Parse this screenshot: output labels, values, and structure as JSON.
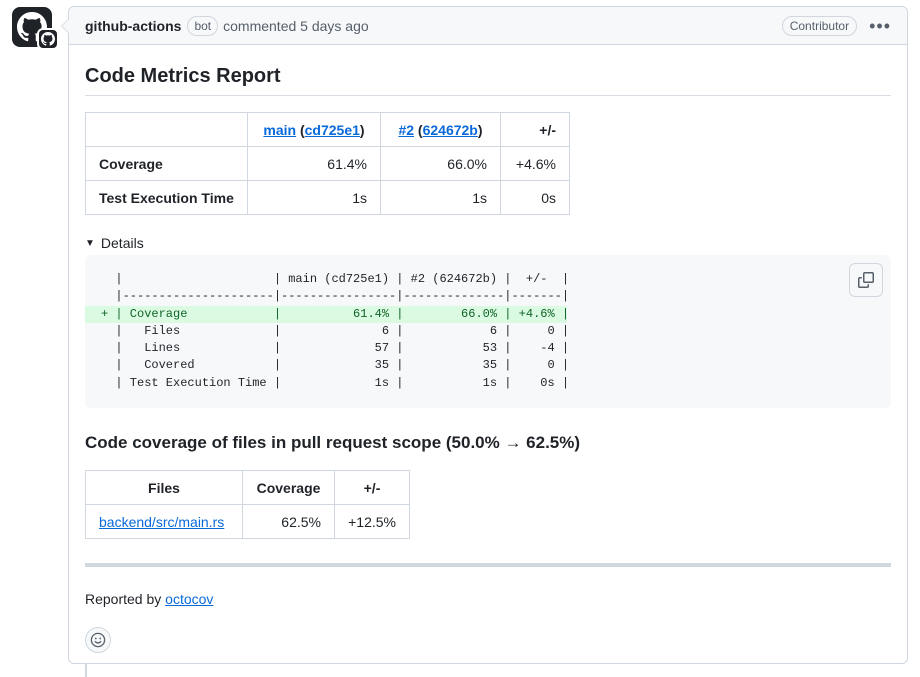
{
  "comment": {
    "author": "github-actions",
    "bot_badge": "bot",
    "meta": "commented 5 days ago",
    "role_badge": "Contributor",
    "more_label": "•••"
  },
  "report": {
    "title": "Code Metrics Report",
    "metrics_table": {
      "header_col1": "",
      "header_main_link": "main",
      "header_main_open": "(",
      "header_main_commit": "cd725e1",
      "header_main_close": ")",
      "header_pr_link": "#2",
      "header_pr_open": "(",
      "header_pr_commit": "624672b",
      "header_pr_close": ")",
      "header_diff": "+/-",
      "rows": [
        {
          "label": "Coverage",
          "main": "61.4%",
          "pr": "66.0%",
          "diff": "+4.6%"
        },
        {
          "label": "Test Execution Time",
          "main": "1s",
          "pr": "1s",
          "diff": "0s"
        }
      ]
    },
    "details_label": "Details",
    "code_lines": [
      "  |                     | main (cd725e1) | #2 (624672b) |  +/-  |",
      "  |---------------------|----------------|--------------|-------|",
      "+ | Coverage            |          61.4% |        66.0% | +4.6% |",
      "  |   Files             |              6 |            6 |     0 |",
      "  |   Lines             |             57 |           53 |    -4 |",
      "  |   Covered           |             35 |           35 |     0 |",
      "  | Test Execution Time |             1s |           1s |    0s |"
    ],
    "scope_title": "Code coverage of files in pull request scope (50.0% → 62.5%)",
    "files_table": {
      "header_files": "Files",
      "header_coverage": "Coverage",
      "header_diff": "+/-",
      "rows": [
        {
          "file": "backend/src/main.rs",
          "coverage": "62.5%",
          "diff": "+12.5%"
        }
      ]
    },
    "reported_by_prefix": "Reported by ",
    "reported_by_link": "octocov"
  },
  "icons": {
    "avatar": "github-mark-icon",
    "copy": "copy-icon",
    "reaction": "smiley-icon"
  },
  "colors": {
    "link": "#0969da",
    "added_bg": "#dafbe1",
    "added_fg": "#116329",
    "border": "#d0d7de"
  }
}
